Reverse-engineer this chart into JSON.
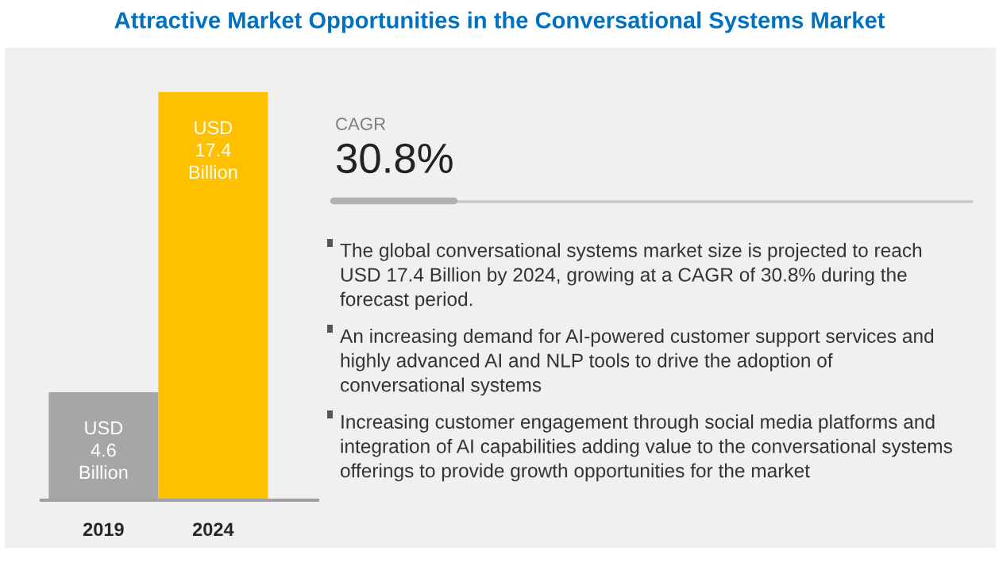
{
  "chart_data": [
    {
      "type": "bar",
      "title": "Attractive Market Opportunities in the Conversational Systems Market",
      "categories": [
        "2019",
        "2024"
      ],
      "values": [
        4.6,
        17.4
      ],
      "colors": [
        "#a6a6a6",
        "#ffc000"
      ],
      "value_labels": [
        "USD\n4.6\nBillion",
        "USD\n17.4\nBillion"
      ],
      "tick_labels": "x"
    },
    {
      "type": "other",
      "annotations": [
        "CAGR",
        "30.8%",
        "The global conversational systems market size is projected to reach\nUSD 17.4 Billion by 2024, growing at a CAGR of 30.8% during the\nforecast period.",
        "An increasing demand for AI-powered customer support services and\nhighly advanced AI and NLP tools to drive the adoption of\nconversational systems",
        "Increasing customer engagement through social media platforms and\nintegration of AI capabilities adding value to the conversational systems\nofferings to provide growth opportunities for the market"
      ]
    }
  ]
}
